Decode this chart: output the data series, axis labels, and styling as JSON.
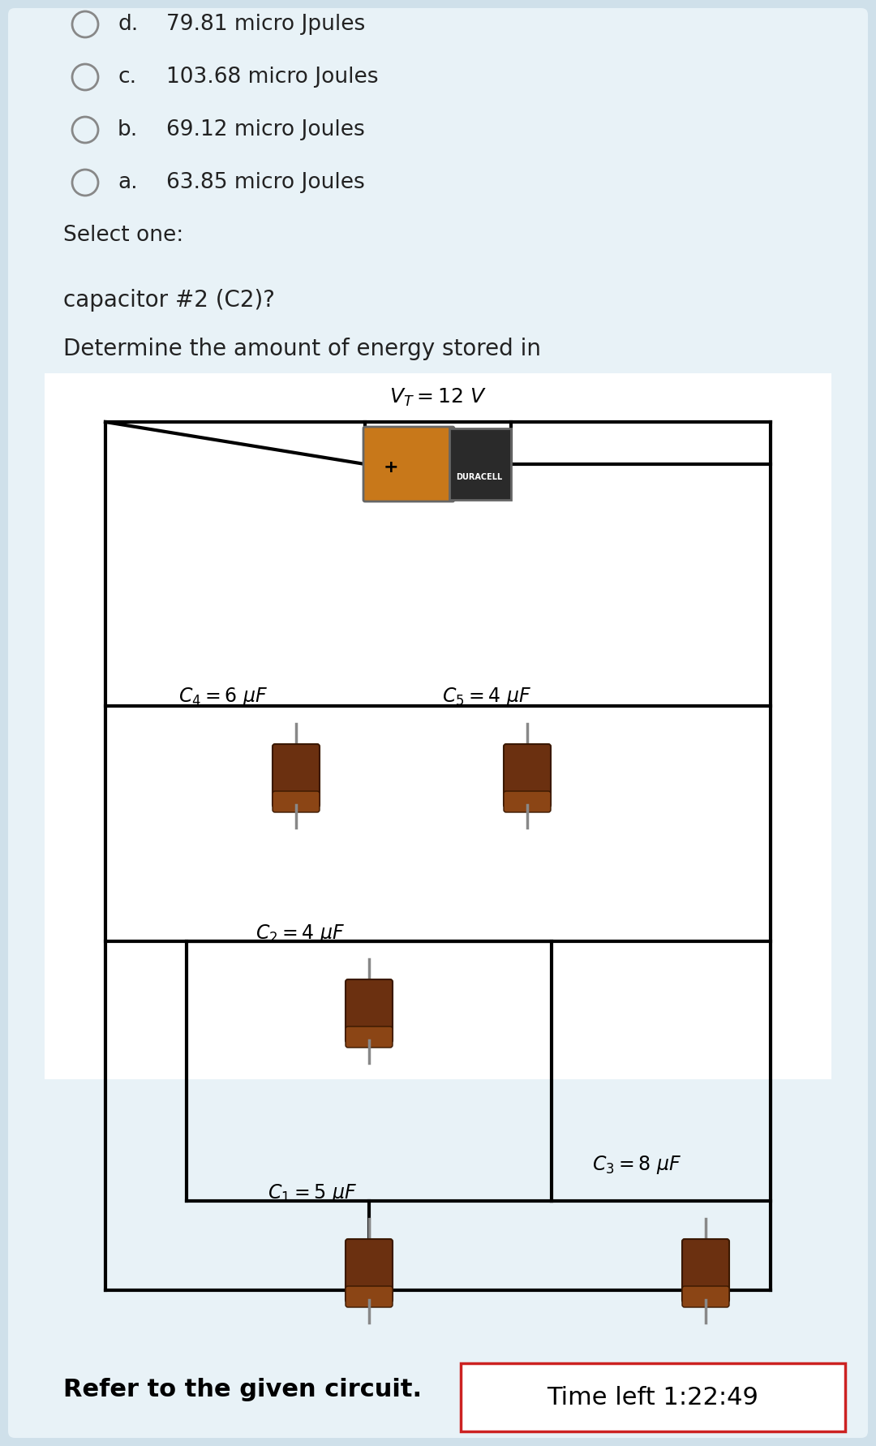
{
  "page_bg": "#cfe0ea",
  "card_bg": "#e8f2f7",
  "white_bg": "#ffffff",
  "timer_text": "Time left 1:22:49",
  "timer_border": "#cc2222",
  "title": "Refer to the given circuit.",
  "question": "Determine the amount of energy stored in\ncapacitor #2 (C2)?",
  "select_one": "Select one:",
  "choices": [
    {
      "label": "a.",
      "text": "63.85 micro Joules"
    },
    {
      "label": "b.",
      "text": "69.12 micro Joules"
    },
    {
      "label": "c.",
      "text": "103.68 micro Joules"
    },
    {
      "label": "d.",
      "text": "79.81 micro Jpules"
    }
  ],
  "cap_body_color": "#6b3010",
  "cap_top_color": "#8b4515",
  "cap_edge_color": "#3a1800",
  "cap_lead_color": "#888888",
  "batt_orange": "#c8781a",
  "batt_black": "#2a2a2a",
  "batt_label": "DURACELL",
  "line_color": "#000000",
  "text_color": "#222222",
  "vt_label": "$V_T = 12\\ V$",
  "C1_label": "$C_1 = 5\\ \\mu F$",
  "C2_label": "$C_2 = 4\\ \\mu F$",
  "C3_label": "$C_3 = 8\\ \\mu F$",
  "C4_label": "$C_4 = 6\\ \\mu F$",
  "C5_label": "$C_5 = 4\\ \\mu F$"
}
